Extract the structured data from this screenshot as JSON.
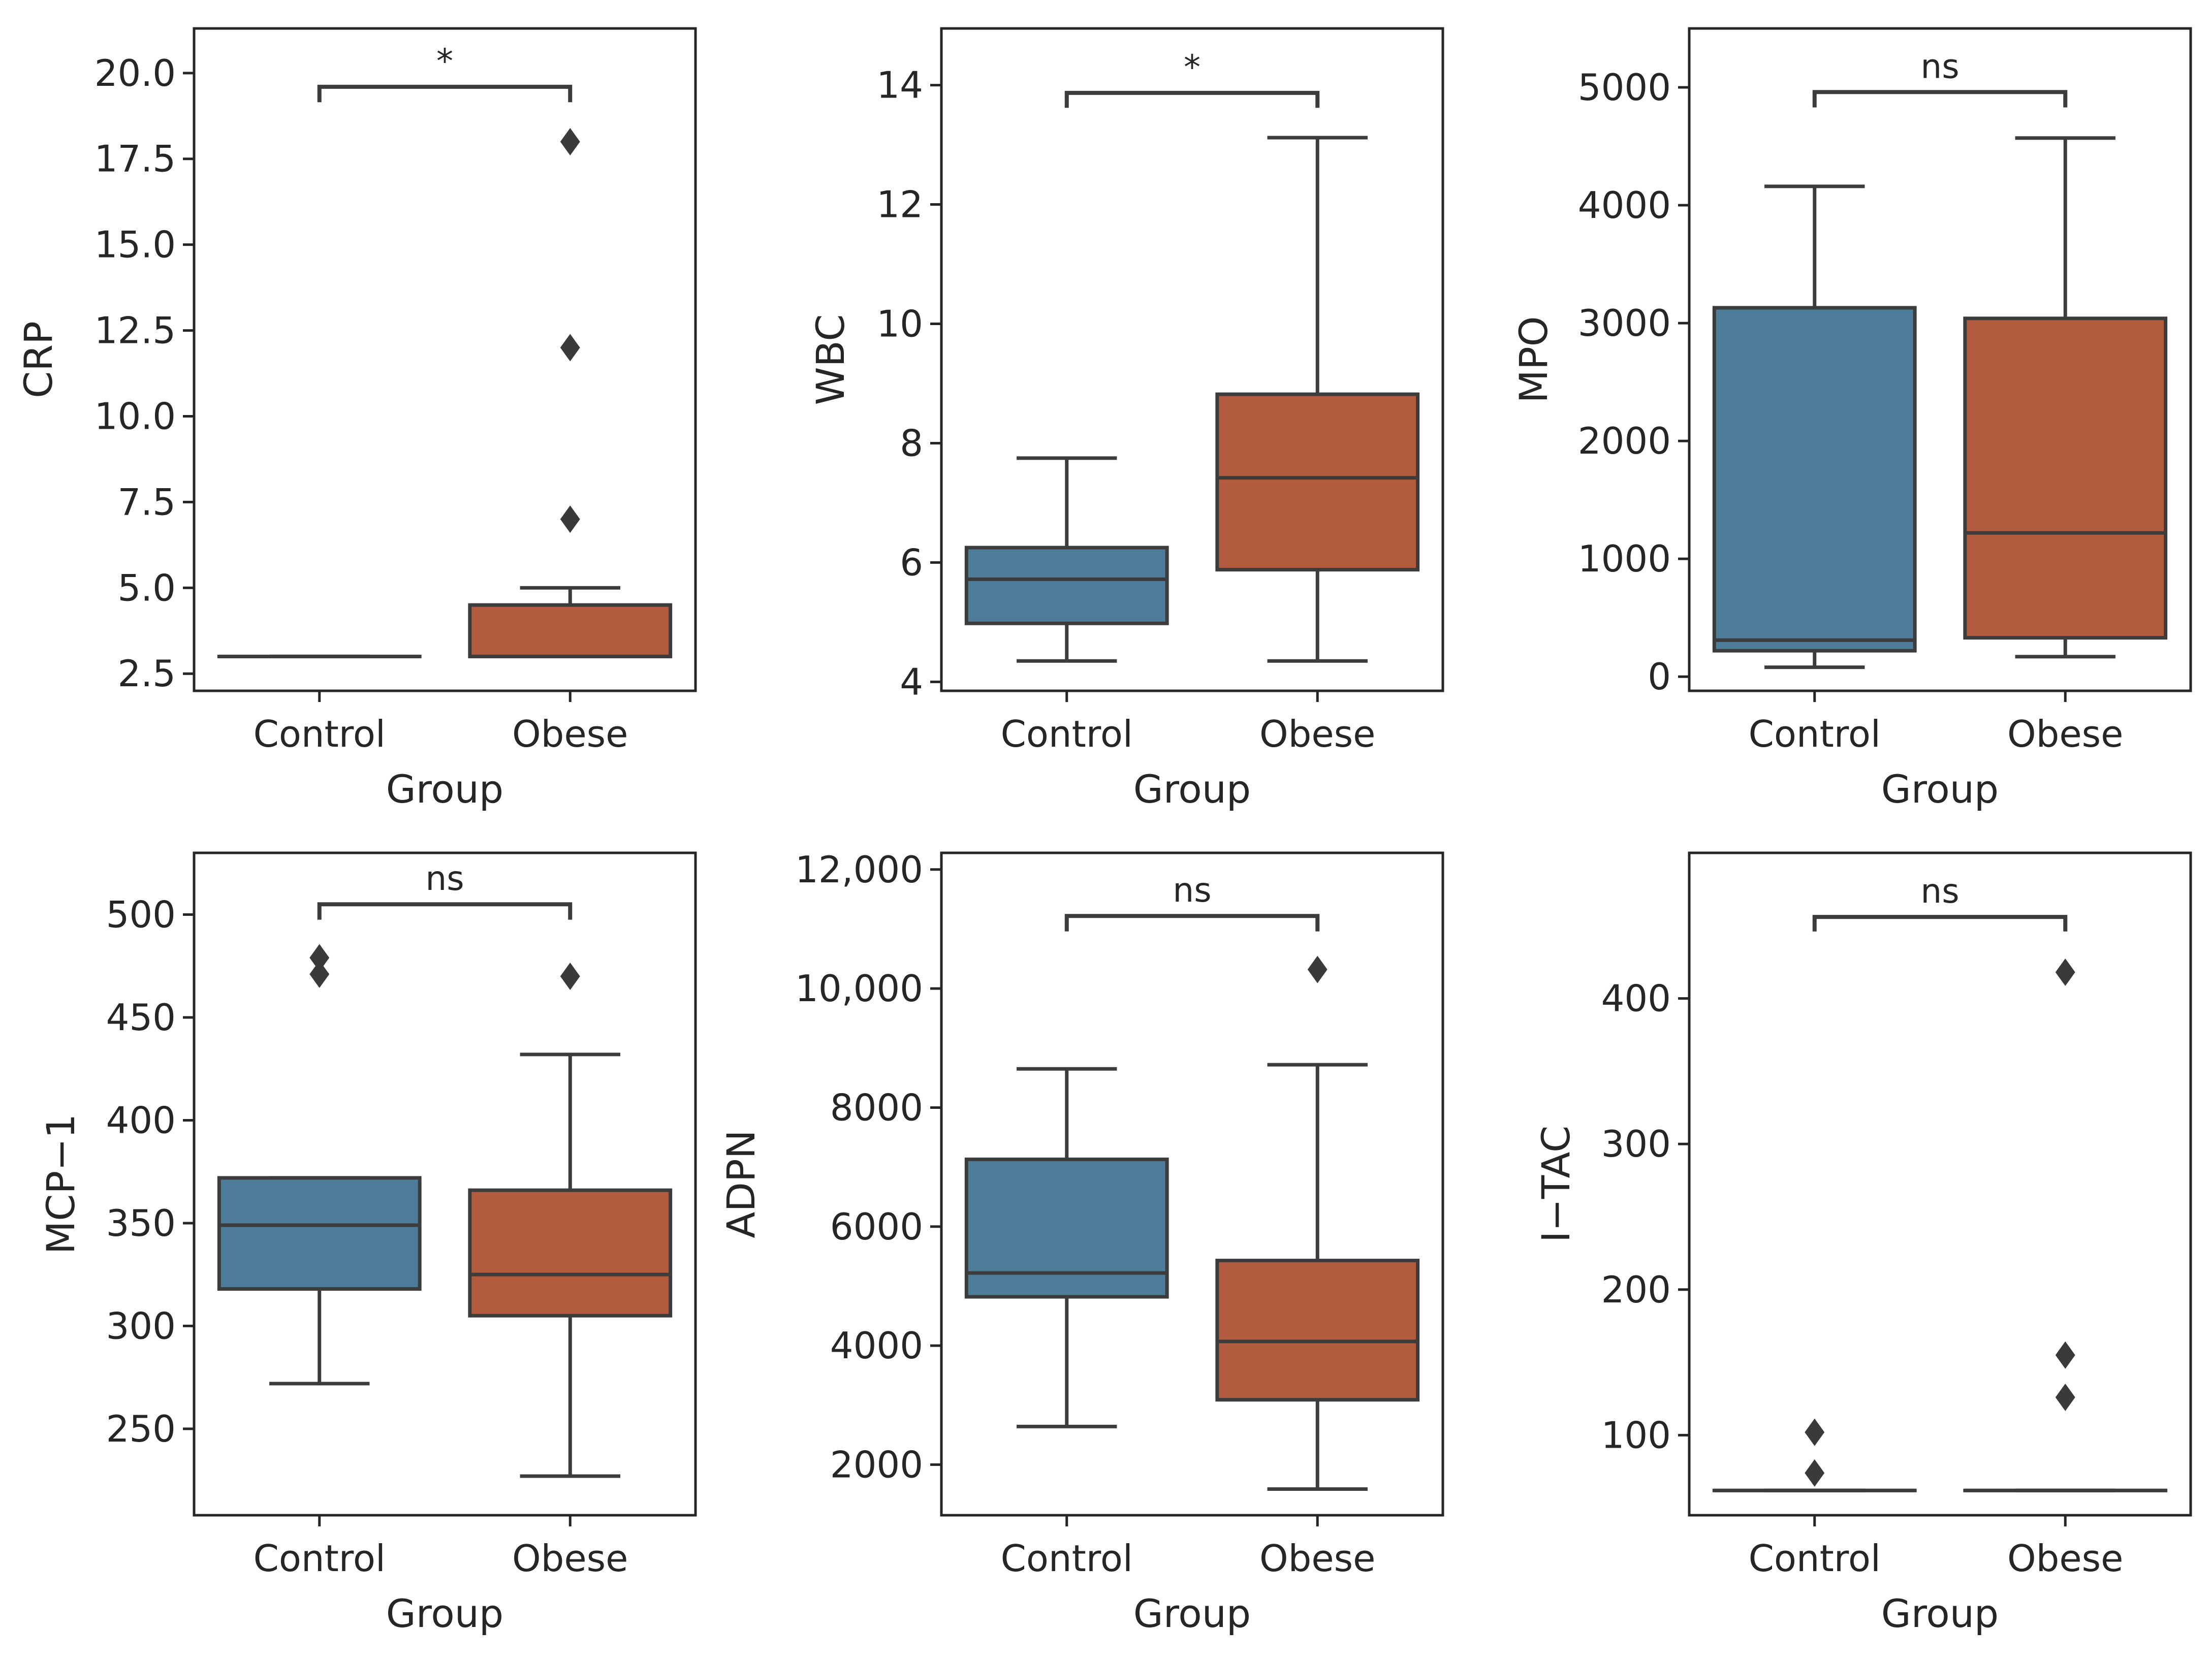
{
  "figure": {
    "colors": {
      "control": "#4E7D99",
      "obese": "#B25B3F",
      "line": "#3C3C3C",
      "outlier": "#3A3A3A",
      "axis": "#262626",
      "background": "#FFFFFF"
    }
  },
  "chart_data": [
    {
      "type": "box",
      "title": "",
      "xlabel": "Group",
      "ylabel": "CRP",
      "categories": [
        "Control",
        "Obese"
      ],
      "ylim": [
        2.0,
        21.3
      ],
      "yticks": [
        2.5,
        5.0,
        7.5,
        10.0,
        12.5,
        15.0,
        17.5,
        20.0
      ],
      "ytick_labels": [
        "2.5",
        "5.0",
        "7.5",
        "10.0",
        "12.5",
        "15.0",
        "17.5",
        "20.0"
      ],
      "boxes": [
        {
          "group": "Control",
          "whisker_low": 3.0,
          "q1": 3.0,
          "median": 3.0,
          "q3": 3.0,
          "whisker_high": 3.0,
          "outliers": []
        },
        {
          "group": "Obese",
          "whisker_low": 3.0,
          "q1": 3.0,
          "median": 3.0,
          "q3": 4.5,
          "whisker_high": 5.0,
          "outliers": [
            7.0,
            12.0,
            18.0
          ]
        }
      ],
      "significance": {
        "label": "*",
        "y": 19.6,
        "tick_len": 0.45
      }
    },
    {
      "type": "box",
      "title": "",
      "xlabel": "Group",
      "ylabel": "WBC",
      "categories": [
        "Control",
        "Obese"
      ],
      "ylim": [
        3.85,
        14.95
      ],
      "yticks": [
        4,
        6,
        8,
        10,
        12,
        14
      ],
      "ytick_labels": [
        "4",
        "6",
        "8",
        "10",
        "12",
        "14"
      ],
      "boxes": [
        {
          "group": "Control",
          "whisker_low": 4.35,
          "q1": 4.98,
          "median": 5.72,
          "q3": 6.25,
          "whisker_high": 7.75,
          "outliers": []
        },
        {
          "group": "Obese",
          "whisker_low": 4.35,
          "q1": 5.88,
          "median": 7.42,
          "q3": 8.82,
          "whisker_high": 13.12,
          "outliers": []
        }
      ],
      "significance": {
        "label": "*",
        "y": 13.87,
        "tick_len": 0.25
      }
    },
    {
      "type": "box",
      "title": "",
      "xlabel": "Group",
      "ylabel": "MPO",
      "categories": [
        "Control",
        "Obese"
      ],
      "ylim": [
        -120,
        5500
      ],
      "yticks": [
        0,
        1000,
        2000,
        3000,
        4000,
        5000
      ],
      "ytick_labels": [
        "0",
        "1000",
        "2000",
        "3000",
        "4000",
        "5000"
      ],
      "boxes": [
        {
          "group": "Control",
          "whisker_low": 80,
          "q1": 220,
          "median": 310,
          "q3": 3130,
          "whisker_high": 4160,
          "outliers": []
        },
        {
          "group": "Obese",
          "whisker_low": 170,
          "q1": 330,
          "median": 1220,
          "q3": 3040,
          "whisker_high": 4570,
          "outliers": []
        }
      ],
      "significance": {
        "label": "ns",
        "y": 4960,
        "tick_len": 130
      }
    },
    {
      "type": "box",
      "title": "",
      "xlabel": "Group",
      "ylabel": "MCP−1",
      "categories": [
        "Control",
        "Obese"
      ],
      "ylim": [
        208,
        530
      ],
      "yticks": [
        250,
        300,
        350,
        400,
        450,
        500
      ],
      "ytick_labels": [
        "250",
        "300",
        "350",
        "400",
        "450",
        "500"
      ],
      "boxes": [
        {
          "group": "Control",
          "whisker_low": 272,
          "q1": 318,
          "median": 349,
          "q3": 372,
          "whisker_high": 372,
          "outliers": [
            471,
            479
          ]
        },
        {
          "group": "Obese",
          "whisker_low": 227,
          "q1": 305,
          "median": 325,
          "q3": 366,
          "whisker_high": 432,
          "outliers": [
            470
          ]
        }
      ],
      "significance": {
        "label": "ns",
        "y": 505,
        "tick_len": 7.5
      }
    },
    {
      "type": "box",
      "title": "",
      "xlabel": "Group",
      "ylabel": "ADPN",
      "categories": [
        "Control",
        "Obese"
      ],
      "ylim": [
        1150,
        12280
      ],
      "yticks": [
        2000,
        4000,
        6000,
        8000,
        10000,
        12000
      ],
      "ytick_labels": [
        "2000",
        "4000",
        "6000",
        "8000",
        "10,000",
        "12,000"
      ],
      "boxes": [
        {
          "group": "Control",
          "whisker_low": 2640,
          "q1": 4820,
          "median": 5220,
          "q3": 7130,
          "whisker_high": 8650,
          "outliers": []
        },
        {
          "group": "Obese",
          "whisker_low": 1590,
          "q1": 3090,
          "median": 4070,
          "q3": 5430,
          "whisker_high": 8720,
          "outliers": [
            10320
          ]
        }
      ],
      "significance": {
        "label": "ns",
        "y": 11220,
        "tick_len": 260
      }
    },
    {
      "type": "box",
      "title": "",
      "xlabel": "Group",
      "ylabel": "I−TAC",
      "categories": [
        "Control",
        "Obese"
      ],
      "ylim": [
        45,
        500
      ],
      "yticks": [
        100,
        200,
        300,
        400
      ],
      "ytick_labels": [
        "100",
        "200",
        "300",
        "400"
      ],
      "boxes": [
        {
          "group": "Control",
          "whisker_low": 62,
          "q1": 62,
          "median": 62,
          "q3": 62,
          "whisker_high": 62,
          "outliers": [
            74,
            102
          ]
        },
        {
          "group": "Obese",
          "whisker_low": 62,
          "q1": 62,
          "median": 62,
          "q3": 62,
          "whisker_high": 62,
          "outliers": [
            126,
            155,
            418
          ]
        }
      ],
      "significance": {
        "label": "ns",
        "y": 456,
        "tick_len": 10
      }
    }
  ]
}
